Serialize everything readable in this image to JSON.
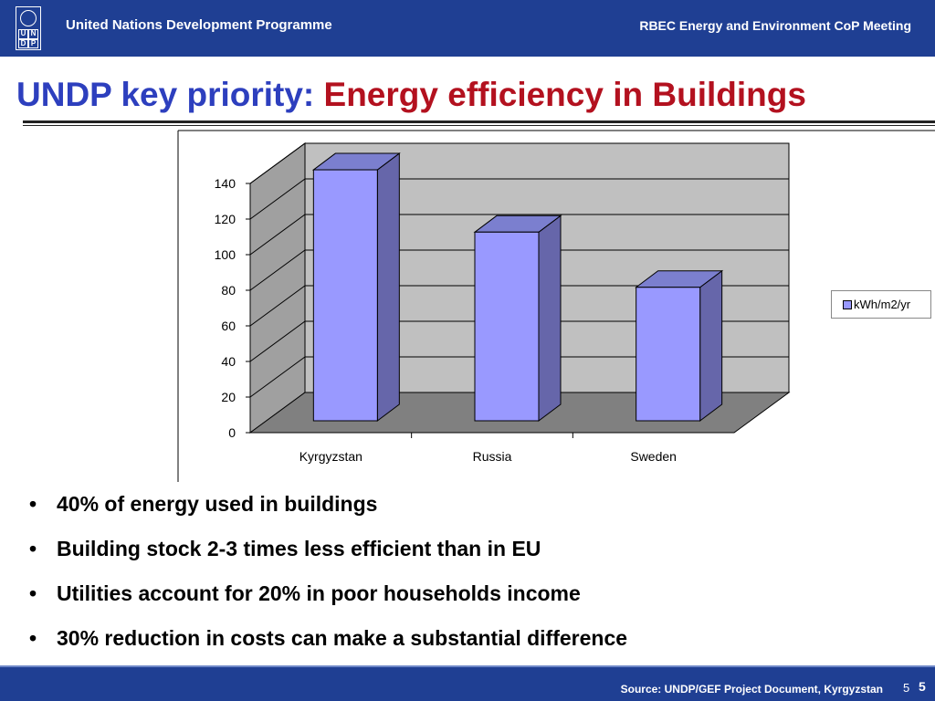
{
  "header": {
    "logo_letters": [
      "U",
      "N",
      "D",
      "P"
    ],
    "organization": "United Nations Development Programme",
    "meeting": "RBEC Energy and Environment CoP Meeting"
  },
  "slide": {
    "title_part1": "UNDP key priority:",
    "title_part2": "Energy efficiency in Buildings"
  },
  "chart_data": {
    "type": "bar",
    "style": "3d",
    "categories": [
      "Kyrgyzstan",
      "Russia",
      "Sweden"
    ],
    "series": [
      {
        "name": "kWh/m2/yr",
        "values": [
          141,
          106,
          75
        ]
      }
    ],
    "yticks": [
      "0",
      "20",
      "40",
      "60",
      "80",
      "100",
      "120",
      "140"
    ],
    "ylim": [
      0,
      140
    ],
    "grid": true,
    "legend": "right",
    "colors": {
      "bar_front": "#9999ff",
      "bar_side": "#6666aa",
      "bar_top": "#7b7fcf",
      "wall": "#c0c0c0",
      "floor": "#808080"
    }
  },
  "bullets": [
    "40% of energy used in buildings",
    "Building stock 2-3 times less efficient than in EU",
    "Utilities account for 20% in poor households income",
    "30% reduction in costs can make a substantial difference"
  ],
  "footer": {
    "source": "Source: UNDP/GEF Project  Document, Kyrgyzstan",
    "page_small": "5",
    "page_bold": "5"
  },
  "theme": {
    "banner": "#1f3f93",
    "title_blue": "#2d3fbe",
    "title_red": "#b3111f"
  }
}
